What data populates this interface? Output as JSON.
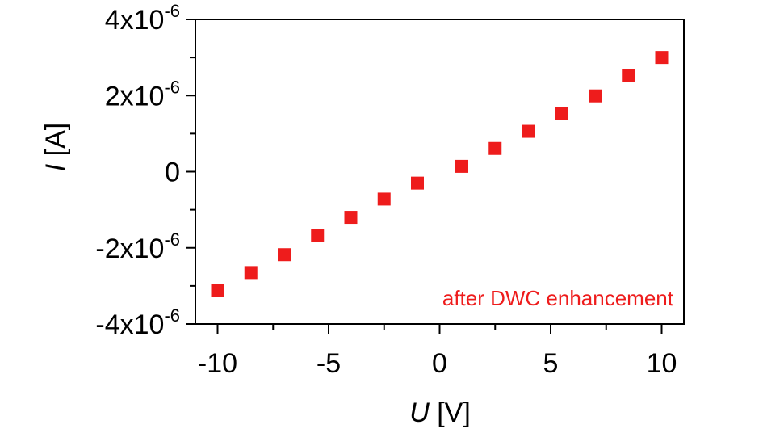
{
  "chart_data": {
    "type": "scatter",
    "xlabel_symbol": "U",
    "xlabel_unit": " [V]",
    "ylabel_symbol": "I",
    "ylabel_unit": " [A]",
    "xlim": [
      -11,
      11
    ],
    "ylim": [
      -4e-06,
      4e-06
    ],
    "x_ticks": [
      {
        "value": -10,
        "label": "-10"
      },
      {
        "value": -5,
        "label": "-5"
      },
      {
        "value": 0,
        "label": "0"
      },
      {
        "value": 5,
        "label": "5"
      },
      {
        "value": 10,
        "label": "10"
      }
    ],
    "y_ticks": [
      {
        "value": -4e-06,
        "mantissa": "-4x10",
        "exponent": "-6"
      },
      {
        "value": -2e-06,
        "mantissa": "-2x10",
        "exponent": "-6"
      },
      {
        "value": 0,
        "mantissa": "0",
        "exponent": ""
      },
      {
        "value": 2e-06,
        "mantissa": "2x10",
        "exponent": "-6"
      },
      {
        "value": 4e-06,
        "mantissa": "4x10",
        "exponent": "-6"
      }
    ],
    "x_minor_ticks": [
      -7.5,
      -2.5,
      2.5,
      7.5
    ],
    "y_minor_ticks": [
      -3e-06,
      -1e-06,
      1e-06,
      3e-06
    ],
    "grid": false,
    "annotation": "after DWC enhancement",
    "series": [
      {
        "color": "#ee1c1c",
        "marker": "square",
        "points": [
          {
            "x": -10,
            "y": -3.13e-06
          },
          {
            "x": -8.5,
            "y": -2.65e-06
          },
          {
            "x": -7,
            "y": -2.18e-06
          },
          {
            "x": -5.5,
            "y": -1.67e-06
          },
          {
            "x": -4,
            "y": -1.2e-06
          },
          {
            "x": -2.5,
            "y": -7.2e-07
          },
          {
            "x": -1,
            "y": -3e-07
          },
          {
            "x": 1,
            "y": 1.4e-07
          },
          {
            "x": 2.5,
            "y": 6.1e-07
          },
          {
            "x": 4,
            "y": 1.06e-06
          },
          {
            "x": 5.5,
            "y": 1.53e-06
          },
          {
            "x": 7,
            "y": 1.99e-06
          },
          {
            "x": 8.5,
            "y": 2.52e-06
          },
          {
            "x": 10,
            "y": 3e-06
          }
        ]
      }
    ]
  }
}
